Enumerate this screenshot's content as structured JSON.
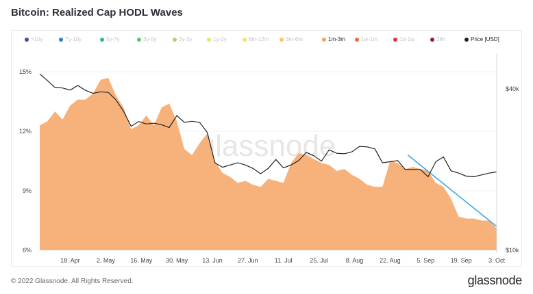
{
  "title": "Bitcoin: Realized Cap HODL Waves",
  "footer": {
    "copyright": "© 2022 Glassnode. All Rights Reserved.",
    "logo": "glassnode"
  },
  "watermark": "glassnode",
  "legend": [
    {
      "label": ">10y",
      "color": "#5b3fa0",
      "active": false
    },
    {
      "label": "7y-10y",
      "color": "#2a7fd4",
      "active": false
    },
    {
      "label": "5y-7y",
      "color": "#32b59a",
      "active": false
    },
    {
      "label": "3y-5y",
      "color": "#5fc47a",
      "active": false
    },
    {
      "label": "2y-3y",
      "color": "#a7d36a",
      "active": false
    },
    {
      "label": "1y-2y",
      "color": "#e4e86a",
      "active": false
    },
    {
      "label": "6m-12m",
      "color": "#f7e26a",
      "active": false
    },
    {
      "label": "3m-6m",
      "color": "#f7c56a",
      "active": false
    },
    {
      "label": "1m-3m",
      "color": "#f7a15a",
      "active": true
    },
    {
      "label": "1w-1m",
      "color": "#ef6a3a",
      "active": false
    },
    {
      "label": "1d-1w",
      "color": "#d8334a",
      "active": false
    },
    {
      "label": "24h",
      "color": "#8a1e3a",
      "active": false
    },
    {
      "label": "Price [USD]",
      "color": "#222222",
      "active": true
    }
  ],
  "chart_data": {
    "type": "area",
    "title": "Bitcoin: Realized Cap HODL Waves",
    "x_ticks": [
      "18. Apr",
      "2. May",
      "16. May",
      "30. May",
      "13. Jun",
      "27. Jun",
      "11. Jul",
      "25. Jul",
      "8. Aug",
      "22. Aug",
      "5. Sep",
      "19. Sep",
      "3. Oct"
    ],
    "y_left": {
      "ticks": [
        "6%",
        "9%",
        "12%",
        "15%"
      ],
      "range": [
        6,
        16.5
      ]
    },
    "y_right": {
      "ticks": [
        "$10k",
        "$40k"
      ],
      "scale": "log"
    },
    "x_range": [
      "2022-04-06",
      "2022-10-03"
    ],
    "series": [
      {
        "name": "1m-3m",
        "color": "#f7b27c",
        "x": [
          "2022-04-06",
          "2022-04-09",
          "2022-04-12",
          "2022-04-15",
          "2022-04-18",
          "2022-04-21",
          "2022-04-24",
          "2022-04-27",
          "2022-04-30",
          "2022-05-03",
          "2022-05-06",
          "2022-05-09",
          "2022-05-12",
          "2022-05-15",
          "2022-05-18",
          "2022-05-21",
          "2022-05-24",
          "2022-05-27",
          "2022-05-30",
          "2022-06-02",
          "2022-06-05",
          "2022-06-08",
          "2022-06-11",
          "2022-06-14",
          "2022-06-17",
          "2022-06-20",
          "2022-06-23",
          "2022-06-26",
          "2022-06-29",
          "2022-07-02",
          "2022-07-05",
          "2022-07-08",
          "2022-07-11",
          "2022-07-14",
          "2022-07-17",
          "2022-07-20",
          "2022-07-23",
          "2022-07-26",
          "2022-07-29",
          "2022-08-01",
          "2022-08-04",
          "2022-08-07",
          "2022-08-10",
          "2022-08-13",
          "2022-08-16",
          "2022-08-19",
          "2022-08-22",
          "2022-08-25",
          "2022-08-28",
          "2022-08-31",
          "2022-09-03",
          "2022-09-06",
          "2022-09-09",
          "2022-09-12",
          "2022-09-15",
          "2022-09-18",
          "2022-09-21",
          "2022-09-24",
          "2022-09-27",
          "2022-09-30",
          "2022-10-03"
        ],
        "values": [
          12.3,
          12.5,
          13.0,
          12.6,
          13.3,
          13.6,
          13.6,
          13.9,
          14.6,
          14.7,
          13.8,
          13.2,
          12.1,
          12.3,
          12.8,
          12.3,
          13.2,
          13.4,
          12.5,
          11.1,
          10.8,
          11.4,
          11.9,
          10.5,
          9.9,
          9.7,
          9.4,
          9.5,
          9.3,
          9.2,
          9.6,
          9.5,
          9.4,
          10.4,
          10.9,
          10.8,
          10.6,
          10.4,
          10.3,
          10.0,
          10.1,
          9.8,
          9.6,
          9.3,
          9.2,
          9.2,
          10.5,
          10.4,
          10.1,
          10.2,
          10.1,
          10.0,
          9.4,
          9.2,
          8.6,
          7.7,
          7.6,
          7.6,
          7.5,
          7.5,
          7.1
        ]
      },
      {
        "name": "Price [USD]",
        "color": "#222222",
        "x": [
          "2022-04-06",
          "2022-04-09",
          "2022-04-12",
          "2022-04-15",
          "2022-04-18",
          "2022-04-21",
          "2022-04-24",
          "2022-04-27",
          "2022-04-30",
          "2022-05-03",
          "2022-05-06",
          "2022-05-09",
          "2022-05-12",
          "2022-05-15",
          "2022-05-18",
          "2022-05-21",
          "2022-05-24",
          "2022-05-27",
          "2022-05-30",
          "2022-06-02",
          "2022-06-05",
          "2022-06-08",
          "2022-06-11",
          "2022-06-14",
          "2022-06-17",
          "2022-06-20",
          "2022-06-23",
          "2022-06-26",
          "2022-06-29",
          "2022-07-02",
          "2022-07-05",
          "2022-07-08",
          "2022-07-11",
          "2022-07-14",
          "2022-07-17",
          "2022-07-20",
          "2022-07-23",
          "2022-07-26",
          "2022-07-29",
          "2022-08-01",
          "2022-08-04",
          "2022-08-07",
          "2022-08-10",
          "2022-08-13",
          "2022-08-16",
          "2022-08-19",
          "2022-08-22",
          "2022-08-25",
          "2022-08-28",
          "2022-08-31",
          "2022-09-03",
          "2022-09-06",
          "2022-09-09",
          "2022-09-12",
          "2022-09-15",
          "2022-09-18",
          "2022-09-21",
          "2022-09-24",
          "2022-09-27",
          "2022-09-30",
          "2022-10-03"
        ],
        "values": [
          45500,
          43000,
          40500,
          40300,
          39600,
          41200,
          39500,
          38500,
          39000,
          38800,
          36400,
          33000,
          29000,
          30200,
          29600,
          29800,
          29400,
          28700,
          31800,
          30000,
          30300,
          30000,
          27500,
          21200,
          20400,
          20800,
          21200,
          20800,
          20200,
          19300,
          20200,
          21800,
          20300,
          20800,
          21600,
          23200,
          22500,
          21500,
          23700,
          23000,
          22900,
          23300,
          24400,
          24300,
          23900,
          21200,
          21400,
          21600,
          20000,
          20000,
          20000,
          18800,
          21400,
          22300,
          19800,
          19400,
          18900,
          18800,
          19100,
          19400,
          19600
        ]
      }
    ],
    "trendline": {
      "color": "#3aa7e6",
      "from": {
        "x": "2022-08-29",
        "y": 10.8
      },
      "to": {
        "x": "2022-10-03",
        "y": 7.2
      }
    },
    "grid": true,
    "legend_position": "top"
  }
}
